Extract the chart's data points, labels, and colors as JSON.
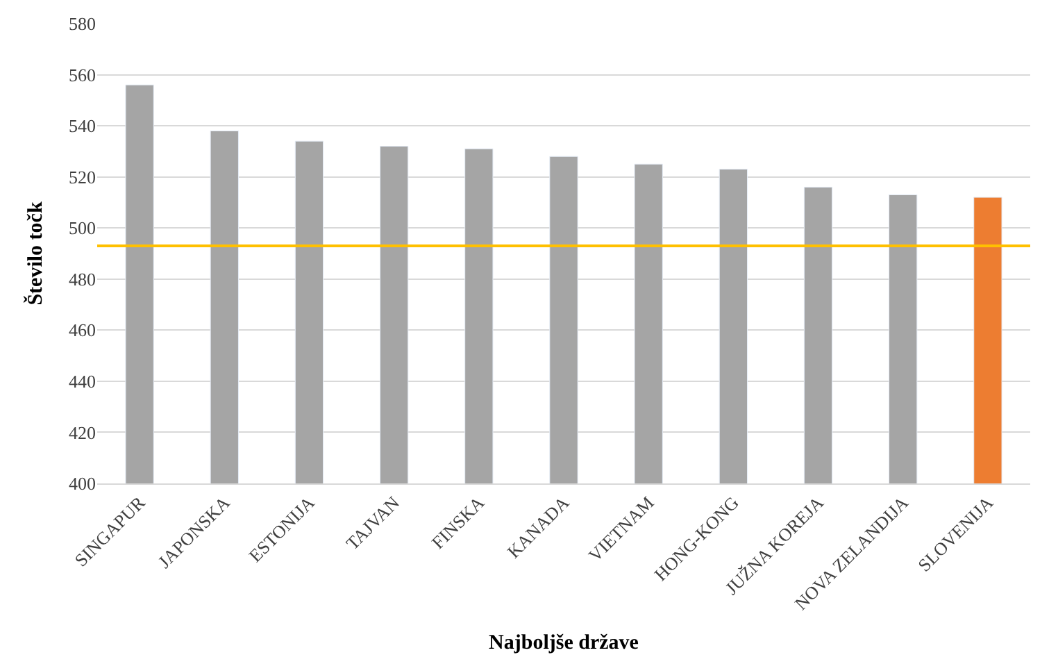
{
  "chart_data": {
    "type": "bar",
    "xlabel": "Najboljše države",
    "ylabel": "Število točk",
    "categories": [
      "SINGAPUR",
      "JAPONSKA",
      "ESTONIJA",
      "TAJVAN",
      "FINSKA",
      "KANADA",
      "VIETNAM",
      "HONG-KONG",
      "JUŽNA KOREJA",
      "NOVA ZELANDIJA",
      "SLOVENIJA"
    ],
    "values": [
      556,
      538,
      534,
      532,
      531,
      528,
      525,
      523,
      516,
      513,
      512
    ],
    "colors": [
      "#a5a5a5",
      "#a5a5a5",
      "#a5a5a5",
      "#a5a5a5",
      "#a5a5a5",
      "#a5a5a5",
      "#a5a5a5",
      "#a5a5a5",
      "#a5a5a5",
      "#a5a5a5",
      "#ed7d31"
    ],
    "ylim": [
      400,
      580
    ],
    "yticks": [
      400,
      420,
      440,
      460,
      480,
      500,
      520,
      540,
      560,
      580
    ],
    "grid": "y",
    "ref_lines": [
      {
        "axis": "y",
        "value": 493,
        "color": "#ffc000"
      }
    ]
  }
}
